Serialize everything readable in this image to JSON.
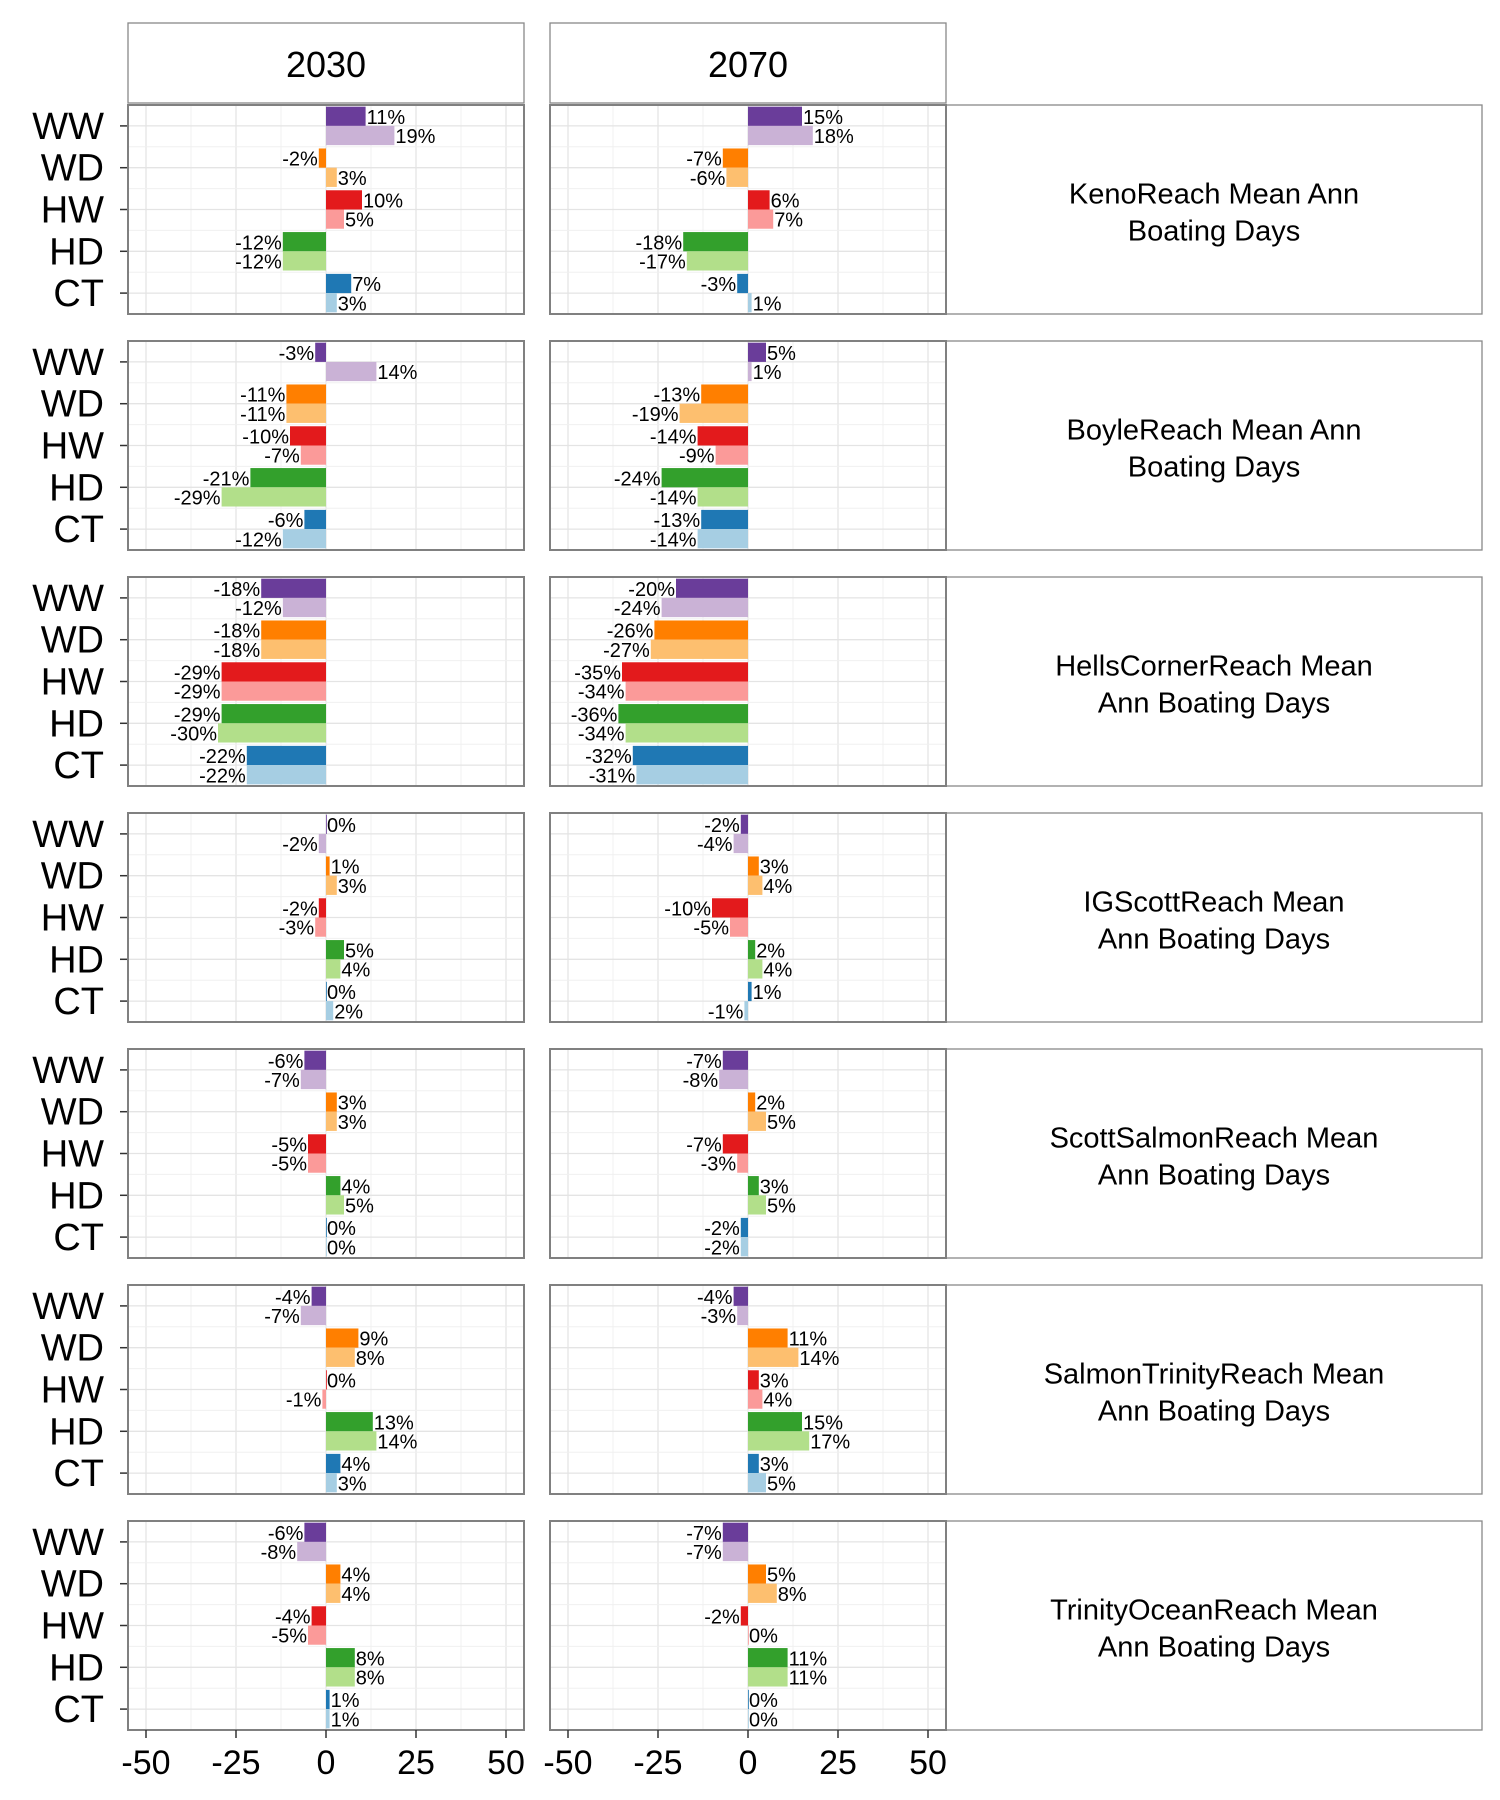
{
  "chart_data": {
    "type": "bar",
    "orientation": "horizontal",
    "column_facets": [
      "2030",
      "2070"
    ],
    "row_facets": [
      "KenoReach Mean Ann Boating Days",
      "BoyleReach Mean Ann Boating Days",
      "HellsCornerReach Mean Ann Boating Days",
      "IGScottReach Mean Ann Boating Days",
      "ScottSalmonReach Mean Ann Boating Days",
      "SalmonTrinityReach Mean Ann Boating Days",
      "TrinityOceanReach Mean Ann Boating Days"
    ],
    "categories": [
      "WW",
      "WD",
      "HW",
      "HD",
      "CT"
    ],
    "colors": {
      "WW": [
        "#6a3d9a",
        "#cab2d6"
      ],
      "WD": [
        "#ff7f00",
        "#fdbf6f"
      ],
      "HW": [
        "#e31a1c",
        "#fb9a99"
      ],
      "HD": [
        "#33a02c",
        "#b2df8a"
      ],
      "CT": [
        "#1f78b4",
        "#a6cee3"
      ]
    },
    "xlim": [
      -55,
      55
    ],
    "x_ticks": [
      -50,
      -25,
      0,
      25,
      50
    ],
    "x_tick_labels": [
      "-50",
      "-25",
      "0",
      "25",
      "50"
    ],
    "grid": true,
    "label_suffix": "%",
    "values": {
      "2030": [
        {
          "WW": [
            11,
            19
          ],
          "WD": [
            -2,
            3
          ],
          "HW": [
            10,
            5
          ],
          "HD": [
            -12,
            -12
          ],
          "CT": [
            7,
            3
          ]
        },
        {
          "WW": [
            -3,
            14
          ],
          "WD": [
            -11,
            -11
          ],
          "HW": [
            -10,
            -7
          ],
          "HD": [
            -21,
            -29
          ],
          "CT": [
            -6,
            -12
          ]
        },
        {
          "WW": [
            -18,
            -12
          ],
          "WD": [
            -18,
            -18
          ],
          "HW": [
            -29,
            -29
          ],
          "HD": [
            -29,
            -30
          ],
          "CT": [
            -22,
            -22
          ]
        },
        {
          "WW": [
            0,
            -2
          ],
          "WD": [
            1,
            3
          ],
          "HW": [
            -2,
            -3
          ],
          "HD": [
            5,
            4
          ],
          "CT": [
            0,
            2
          ]
        },
        {
          "WW": [
            -6,
            -7
          ],
          "WD": [
            3,
            3
          ],
          "HW": [
            -5,
            -5
          ],
          "HD": [
            4,
            5
          ],
          "CT": [
            0,
            0
          ]
        },
        {
          "WW": [
            -4,
            -7
          ],
          "WD": [
            9,
            8
          ],
          "HW": [
            0,
            -1
          ],
          "HD": [
            13,
            14
          ],
          "CT": [
            4,
            3
          ]
        },
        {
          "WW": [
            -6,
            -8
          ],
          "WD": [
            4,
            4
          ],
          "HW": [
            -4,
            -5
          ],
          "HD": [
            8,
            8
          ],
          "CT": [
            1,
            1
          ]
        }
      ],
      "2070": [
        {
          "WW": [
            15,
            18
          ],
          "WD": [
            -7,
            -6
          ],
          "HW": [
            6,
            7
          ],
          "HD": [
            -18,
            -17
          ],
          "CT": [
            -3,
            1
          ]
        },
        {
          "WW": [
            5,
            1
          ],
          "WD": [
            -13,
            -19
          ],
          "HW": [
            -14,
            -9
          ],
          "HD": [
            -24,
            -14
          ],
          "CT": [
            -13,
            -14
          ]
        },
        {
          "WW": [
            -20,
            -24
          ],
          "WD": [
            -26,
            -27
          ],
          "HW": [
            -35,
            -34
          ],
          "HD": [
            -36,
            -34
          ],
          "CT": [
            -32,
            -31
          ]
        },
        {
          "WW": [
            -2,
            -4
          ],
          "WD": [
            3,
            4
          ],
          "HW": [
            -10,
            -5
          ],
          "HD": [
            2,
            4
          ],
          "CT": [
            1,
            -1
          ]
        },
        {
          "WW": [
            -7,
            -8
          ],
          "WD": [
            2,
            5
          ],
          "HW": [
            -7,
            -3
          ],
          "HD": [
            3,
            5
          ],
          "CT": [
            -2,
            -2
          ]
        },
        {
          "WW": [
            -4,
            -3
          ],
          "WD": [
            11,
            14
          ],
          "HW": [
            3,
            4
          ],
          "HD": [
            15,
            17
          ],
          "CT": [
            3,
            5
          ]
        },
        {
          "WW": [
            -7,
            -7
          ],
          "WD": [
            5,
            8
          ],
          "HW": [
            -2,
            0
          ],
          "HD": [
            11,
            11
          ],
          "CT": [
            0,
            0
          ]
        }
      ]
    }
  }
}
